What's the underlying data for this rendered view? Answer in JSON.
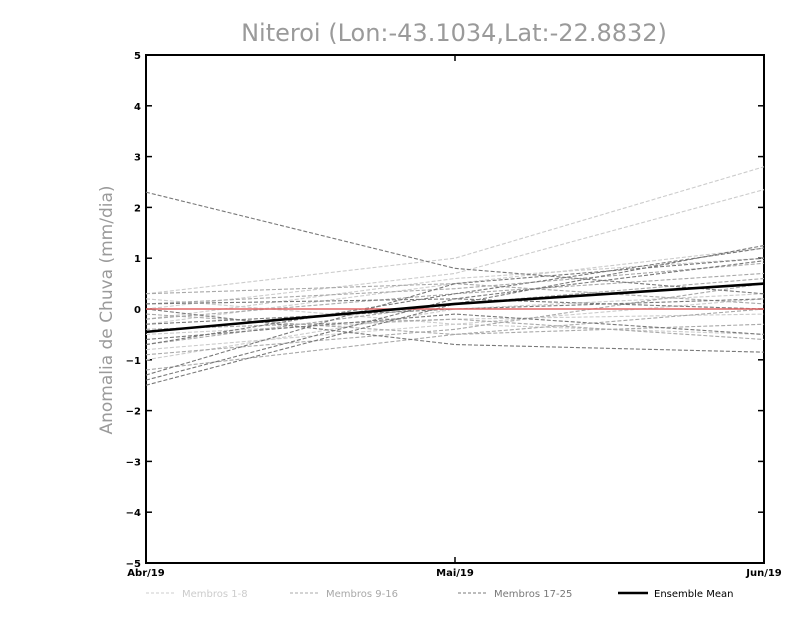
{
  "chart_data": {
    "type": "line",
    "title": "Niteroi (Lon:-43.1034,Lat:-22.8832)",
    "ylabel": "Anomalia de Chuva (mm/dia)",
    "xlabel": "",
    "categories": [
      "Abr/19",
      "Mai/19",
      "Jun/19"
    ],
    "ylim": [
      -5,
      5
    ],
    "yticks": [
      -5,
      -4,
      -3,
      -2,
      -1,
      0,
      1,
      2,
      3,
      4,
      5
    ],
    "ytick_labels": [
      "−5",
      "−4",
      "−3",
      "−2",
      "−1",
      "0",
      "1",
      "2",
      "3",
      "4",
      "5"
    ],
    "grid": false,
    "legend_position": "bottom",
    "reference_line": {
      "y": 0,
      "color": "#e06666"
    },
    "groups": [
      {
        "name": "Membros 1-8",
        "color": "#cccccc",
        "series": [
          {
            "values": [
              0.3,
              1.0,
              2.8
            ]
          },
          {
            "values": [
              0.0,
              0.7,
              2.35
            ]
          },
          {
            "values": [
              -0.2,
              0.6,
              1.0
            ]
          },
          {
            "values": [
              -0.5,
              -0.2,
              -0.1
            ]
          },
          {
            "values": [
              -0.8,
              -0.3,
              0.2
            ]
          },
          {
            "values": [
              -1.0,
              0.0,
              0.3
            ]
          },
          {
            "values": [
              0.2,
              -0.3,
              -0.5
            ]
          },
          {
            "values": [
              -0.3,
              0.5,
              1.2
            ]
          }
        ]
      },
      {
        "name": "Membros 9-16",
        "color": "#a8a8a8",
        "series": [
          {
            "values": [
              -0.2,
              0.3,
              0.7
            ]
          },
          {
            "values": [
              0.3,
              0.5,
              0.1
            ]
          },
          {
            "values": [
              -0.7,
              0.1,
              0.6
            ]
          },
          {
            "values": [
              -1.2,
              -0.5,
              0.0
            ]
          },
          {
            "values": [
              -0.4,
              -0.2,
              -0.6
            ]
          },
          {
            "values": [
              0.1,
              0.4,
              0.9
            ]
          },
          {
            "values": [
              -0.9,
              -0.4,
              0.5
            ]
          },
          {
            "values": [
              -0.1,
              -0.5,
              -0.3
            ]
          }
        ]
      },
      {
        "name": "Membros 17-25",
        "color": "#787878",
        "series": [
          {
            "values": [
              2.3,
              0.8,
              0.3
            ]
          },
          {
            "values": [
              -1.5,
              0.1,
              1.25
            ]
          },
          {
            "values": [
              -1.4,
              0.2,
              0.95
            ]
          },
          {
            "values": [
              0.0,
              -0.7,
              -0.85
            ]
          },
          {
            "values": [
              -0.7,
              0.3,
              1.2
            ]
          },
          {
            "values": [
              0.1,
              0.2,
              0.0
            ]
          },
          {
            "values": [
              -0.6,
              -0.1,
              -0.5
            ]
          },
          {
            "values": [
              -1.3,
              0.5,
              1.0
            ]
          },
          {
            "values": [
              -0.3,
              0.0,
              0.2
            ]
          }
        ]
      }
    ],
    "ensemble_mean": {
      "name": "Ensemble Mean",
      "color": "#000000",
      "values": [
        -0.45,
        0.1,
        0.5
      ]
    }
  }
}
